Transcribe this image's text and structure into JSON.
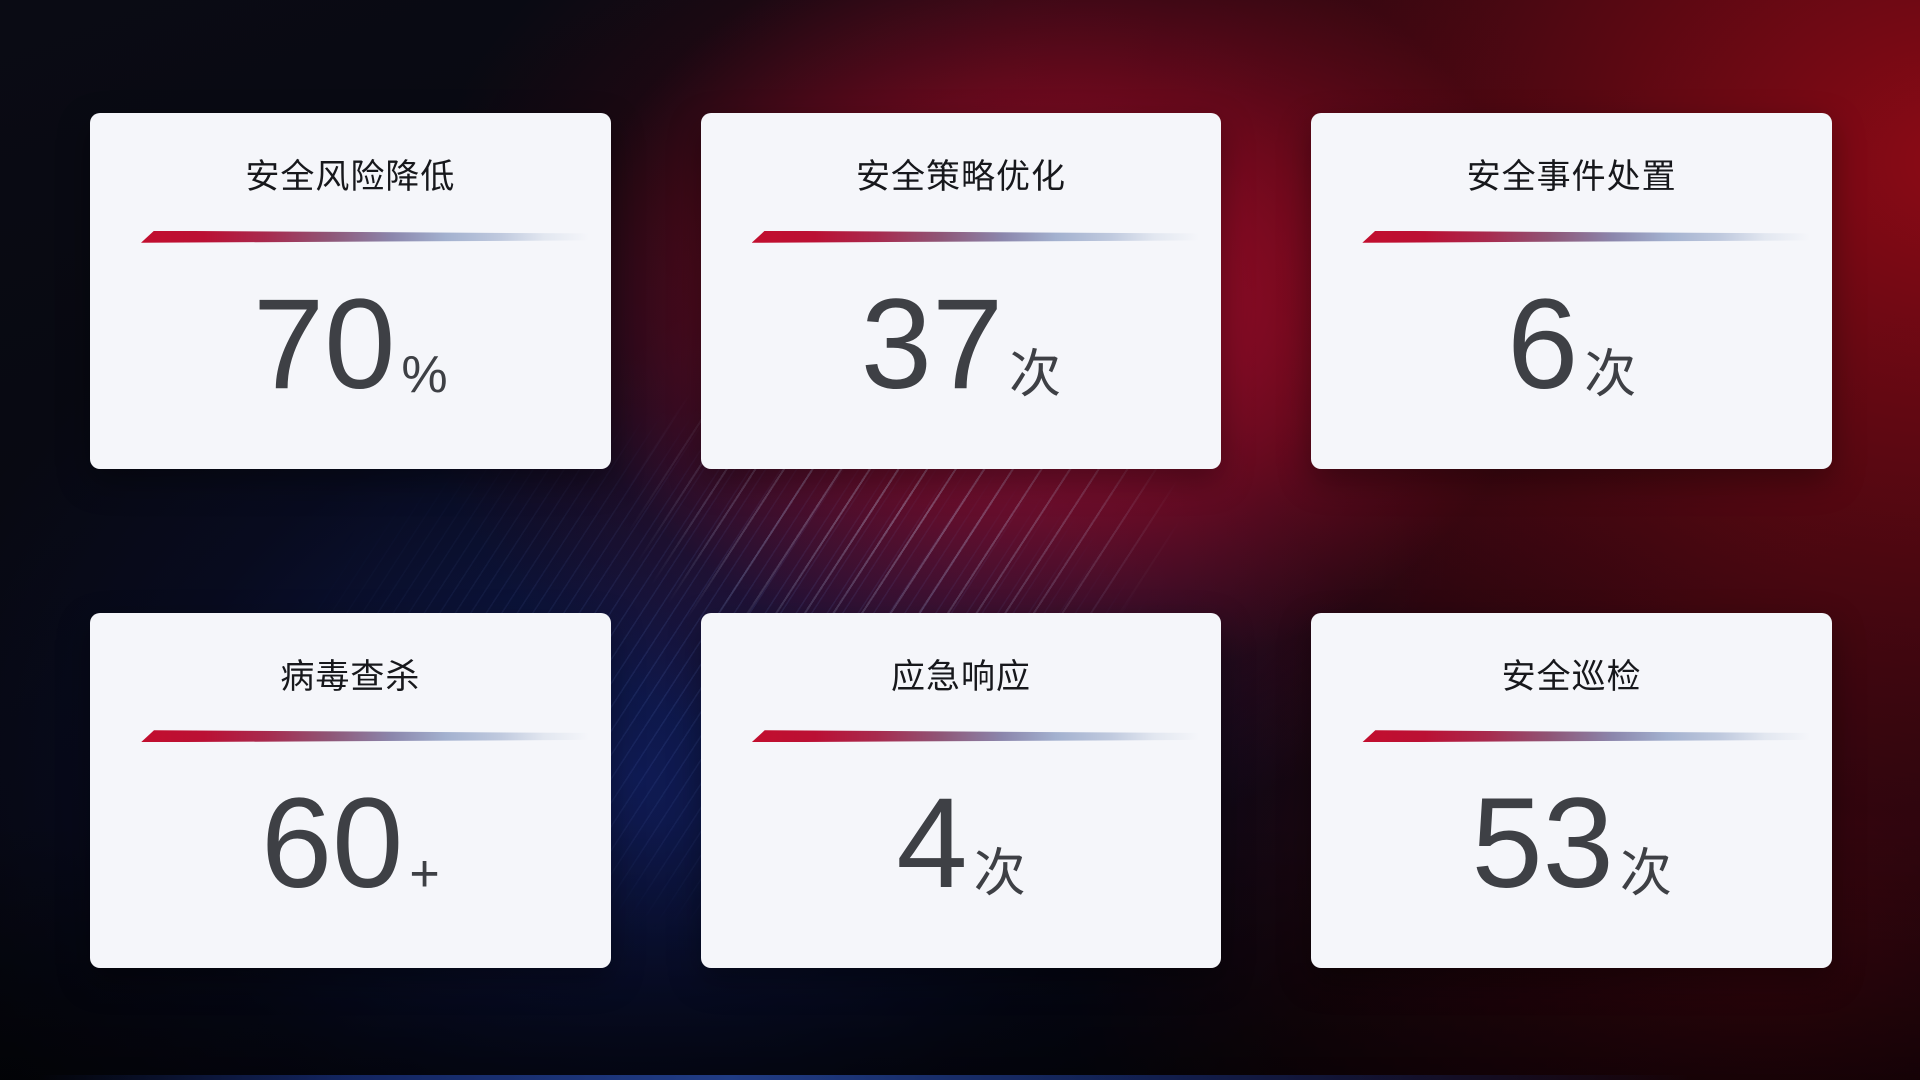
{
  "cards": [
    {
      "title": "安全风险降低",
      "value": "70",
      "unit": "%"
    },
    {
      "title": "安全策略优化",
      "value": "37",
      "unit": "次"
    },
    {
      "title": "安全事件处置",
      "value": "6",
      "unit": "次"
    },
    {
      "title": "病毒查杀",
      "value": "60",
      "unit": "+"
    },
    {
      "title": "应急响应",
      "value": "4",
      "unit": "次"
    },
    {
      "title": "安全巡检",
      "value": "53",
      "unit": "次"
    }
  ],
  "colors": {
    "card_background": "#f5f6fa",
    "title_text": "#17181c",
    "value_text": "#3e4045",
    "divider_red": "#c20e2e",
    "divider_blue": "#aebcd8",
    "background_base": "#05060d",
    "background_deep_red": "#8c0a14",
    "background_crimson": "#c00e34",
    "background_navy_blue": "#16287e"
  }
}
